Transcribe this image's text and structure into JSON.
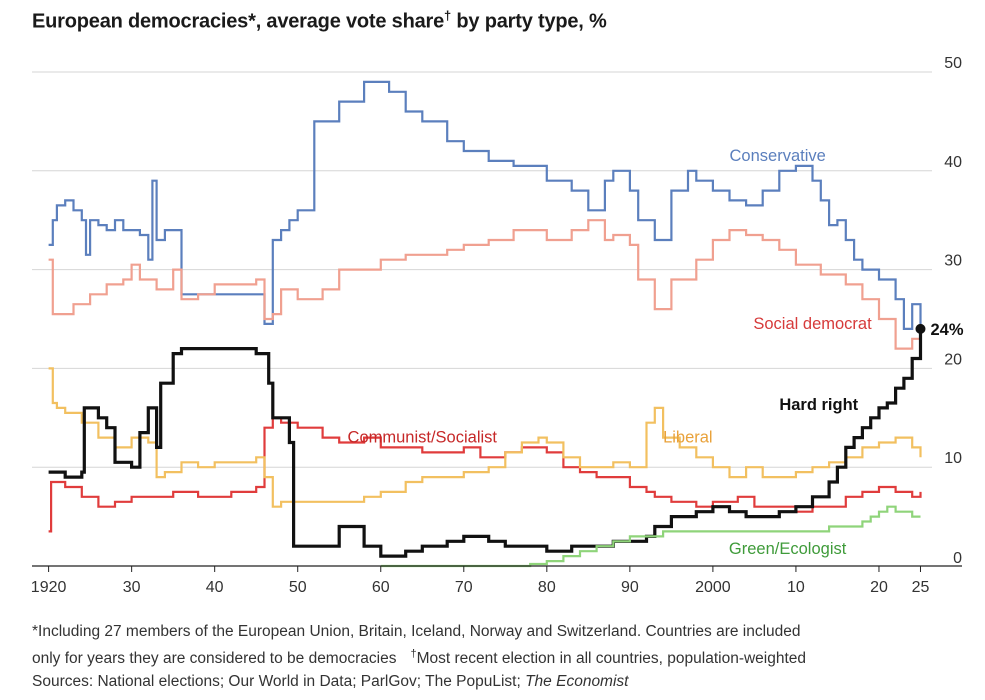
{
  "header": {
    "title_part1": "European democracies",
    "title_star": "*",
    "title_part2": ", average vote share",
    "title_dagger": "†",
    "title_part3": " by party type, %"
  },
  "chart_data": {
    "type": "line",
    "title": "European democracies*, average vote share† by party type, %",
    "xlabel": "",
    "ylabel": "%",
    "xlim": [
      1918,
      2030
    ],
    "ylim": [
      0,
      50
    ],
    "x_ticks": [
      {
        "value": 1920,
        "label": "1920"
      },
      {
        "value": 1930,
        "label": "30"
      },
      {
        "value": 1940,
        "label": "40"
      },
      {
        "value": 1950,
        "label": "50"
      },
      {
        "value": 1960,
        "label": "60"
      },
      {
        "value": 1970,
        "label": "70"
      },
      {
        "value": 1980,
        "label": "80"
      },
      {
        "value": 1990,
        "label": "90"
      },
      {
        "value": 2000,
        "label": "2000"
      },
      {
        "value": 2010,
        "label": "10"
      },
      {
        "value": 2020,
        "label": "20"
      },
      {
        "value": 2025,
        "label": "25"
      }
    ],
    "y_ticks": [
      {
        "value": 0,
        "label": "0"
      },
      {
        "value": 10,
        "label": "10"
      },
      {
        "value": 20,
        "label": "20"
      },
      {
        "value": 30,
        "label": "30"
      },
      {
        "value": 40,
        "label": "40"
      },
      {
        "value": 50,
        "label": "50"
      }
    ],
    "series": [
      {
        "name": "Conservative",
        "label": "Conservative",
        "color": "#5b7fbd",
        "width": 2.2,
        "x": [
          1920,
          1920.5,
          1921,
          1922,
          1923,
          1924,
          1924.5,
          1925,
          1926,
          1927,
          1928,
          1929,
          1931,
          1932,
          1932.5,
          1933,
          1934,
          1936,
          1946,
          1946,
          1947,
          1948,
          1949,
          1950,
          1952,
          1955,
          1958,
          1961,
          1963,
          1965,
          1968,
          1970,
          1973,
          1976,
          1980,
          1983,
          1985,
          1987,
          1988,
          1990,
          1991,
          1993,
          1995,
          1997,
          1998,
          2000,
          2002,
          2004,
          2006,
          2008,
          2010,
          2012,
          2013,
          2014,
          2015,
          2016,
          2017,
          2018,
          2020,
          2022,
          2023,
          2024,
          2025
        ],
        "y": [
          32.5,
          35,
          36.5,
          37,
          36,
          35,
          31.5,
          35,
          34.5,
          34,
          35,
          34,
          33.5,
          31,
          39,
          33,
          34,
          27.5,
          27,
          24.5,
          33,
          34,
          35,
          36,
          45,
          47,
          49,
          48,
          46,
          45,
          43,
          42,
          41,
          40.5,
          39,
          38,
          36,
          39,
          40,
          38,
          35,
          33,
          38,
          40,
          39,
          38,
          37,
          36.5,
          38,
          40,
          40.5,
          39,
          37,
          34.5,
          35,
          33,
          31,
          30,
          29,
          27,
          24,
          26.5,
          24
        ]
      },
      {
        "name": "Social democrat",
        "label": "Social democrat",
        "color": "#f0a090",
        "width": 2.2,
        "x": [
          1920,
          1920.5,
          1921,
          1923,
          1925,
          1927,
          1929,
          1930,
          1931,
          1933,
          1935,
          1936,
          1938,
          1940,
          1945,
          1946,
          1947,
          1948,
          1950,
          1953,
          1955,
          1960,
          1963,
          1965,
          1968,
          1970,
          1973,
          1976,
          1980,
          1983,
          1985,
          1987,
          1988,
          1990,
          1991,
          1993,
          1995,
          1998,
          2000,
          2002,
          2004,
          2006,
          2008,
          2010,
          2013,
          2016,
          2018,
          2020,
          2022,
          2024,
          2025
        ],
        "y": [
          31,
          25.5,
          25.5,
          26.5,
          27.5,
          28.5,
          29,
          30.5,
          29,
          28,
          30,
          27,
          27.5,
          28.5,
          29,
          25,
          25.5,
          28,
          27,
          28,
          30,
          31,
          31.5,
          31.5,
          32,
          32.5,
          33,
          34,
          33,
          34,
          35,
          33,
          33.5,
          32.5,
          29,
          26,
          29,
          31,
          33,
          34,
          33.5,
          33,
          32,
          30.5,
          29.5,
          28.5,
          27,
          25,
          22,
          23,
          23.5
        ]
      },
      {
        "name": "Communist/Socialist",
        "label": "Communist/Socialist",
        "color": "#e03c3c",
        "width": 2.2,
        "x": [
          1920,
          1920.3,
          1922,
          1924,
          1926,
          1928,
          1930,
          1932,
          1935,
          1938,
          1940,
          1942,
          1945,
          1946,
          1947,
          1948,
          1950,
          1953,
          1955,
          1958,
          1960,
          1962,
          1965,
          1968,
          1970,
          1972,
          1975,
          1977,
          1980,
          1982,
          1984,
          1986,
          1988,
          1990,
          1992,
          1993,
          1995,
          1998,
          2000,
          2003,
          2005,
          2008,
          2010,
          2012,
          2014,
          2016,
          2018,
          2020,
          2022,
          2024,
          2025
        ],
        "y": [
          3.5,
          8.5,
          8,
          7,
          6,
          6.5,
          7,
          7,
          7.5,
          7,
          7,
          7.5,
          8,
          14,
          15,
          14.5,
          14,
          13,
          12.5,
          13,
          12,
          12,
          11.5,
          11.5,
          12,
          11,
          11.5,
          12,
          11.5,
          10,
          9.5,
          9,
          9,
          8,
          7.5,
          7,
          6.5,
          6,
          6.5,
          7,
          6,
          6,
          5.5,
          6,
          6,
          7,
          7.5,
          8,
          7.5,
          7,
          7.5
        ]
      },
      {
        "name": "Liberal",
        "label": "Liberal",
        "color": "#f2c060",
        "width": 2.2,
        "x": [
          1920,
          1920.5,
          1921,
          1922,
          1924,
          1926,
          1928,
          1930,
          1932,
          1933,
          1934,
          1936,
          1938,
          1940,
          1943,
          1945,
          1946,
          1947,
          1948,
          1950,
          1952,
          1955,
          1958,
          1960,
          1963,
          1965,
          1968,
          1970,
          1973,
          1975,
          1977,
          1979,
          1980,
          1982,
          1984,
          1986,
          1988,
          1990,
          1992,
          1993,
          1994,
          1996,
          1998,
          2000,
          2002,
          2004,
          2006,
          2008,
          2010,
          2012,
          2014,
          2016,
          2018,
          2020,
          2022,
          2024,
          2025
        ],
        "y": [
          20,
          16.5,
          16,
          15.5,
          14.5,
          13,
          12,
          13,
          12.5,
          9,
          9.5,
          10.5,
          10,
          10.5,
          10.5,
          11,
          9,
          6,
          6.5,
          6.5,
          6.5,
          6.5,
          7,
          7.5,
          8.5,
          9,
          9,
          9.5,
          10,
          11.5,
          12.5,
          13,
          12.5,
          11,
          10,
          10,
          10.5,
          10,
          14.5,
          16,
          13,
          12,
          11,
          10,
          9,
          10,
          9,
          9,
          9.5,
          10,
          10.5,
          11,
          12,
          12.5,
          13,
          12,
          11
        ]
      },
      {
        "name": "Hard right",
        "label": "Hard right",
        "color": "#111111",
        "width": 3.2,
        "x": [
          1920,
          1922,
          1924,
          1924.3,
          1926,
          1927,
          1928,
          1930,
          1931,
          1932,
          1933,
          1933.5,
          1935,
          1936,
          1938,
          1940,
          1945,
          1946,
          1946.5,
          1947,
          1949,
          1949.5,
          1950,
          1955,
          1958,
          1960,
          1963,
          1965,
          1968,
          1970,
          1973,
          1975,
          1978,
          1980,
          1983,
          1986,
          1988,
          1990,
          1992,
          1993,
          1995,
          1998,
          2000,
          2002,
          2004,
          2006,
          2008,
          2010,
          2012,
          2014,
          2015,
          2016,
          2017,
          2018,
          2019,
          2020,
          2021,
          2022,
          2023,
          2024,
          2025
        ],
        "y": [
          9.5,
          9,
          9.5,
          16,
          15,
          14,
          10.5,
          10,
          13.5,
          16,
          12,
          18.5,
          21.5,
          22,
          22,
          22,
          21.5,
          21.5,
          18.5,
          15,
          12.5,
          2,
          2,
          4,
          2,
          1,
          1.5,
          2,
          2.5,
          3,
          2.5,
          2,
          2,
          1.5,
          2,
          2,
          2.5,
          2.5,
          3,
          4,
          5,
          5.5,
          6,
          5.5,
          5,
          5,
          5.5,
          6,
          7,
          8.5,
          10,
          12,
          13,
          14,
          15,
          16,
          16.5,
          18,
          19,
          21,
          24
        ]
      },
      {
        "name": "Green/Ecologist",
        "label": "Green/Ecologist",
        "color": "#8fd47a",
        "width": 2.2,
        "x": [
          1960,
          1965,
          1970,
          1975,
          1978,
          1980,
          1982,
          1984,
          1986,
          1988,
          1990,
          1992,
          1994,
          1996,
          1998,
          2000,
          2002,
          2004,
          2006,
          2008,
          2010,
          2012,
          2014,
          2016,
          2018,
          2019,
          2020,
          2021,
          2022,
          2023,
          2024,
          2025
        ],
        "y": [
          0,
          0,
          0,
          0,
          0.2,
          0.5,
          1,
          1.5,
          2,
          2.5,
          3,
          3,
          3.5,
          3.5,
          3.5,
          3.5,
          3.5,
          3.5,
          3.5,
          3.5,
          3.5,
          3.5,
          4,
          4,
          4.5,
          5,
          5.5,
          6,
          5.5,
          5.5,
          5,
          5
        ]
      }
    ],
    "annotations": [
      {
        "series": "Conservative",
        "text": "Conservative",
        "color": "#5b7fbd",
        "x": 2002,
        "y": 41,
        "anchor": "start"
      },
      {
        "series": "Social democrat",
        "text": "Social democrat",
        "color": "#d63a3a",
        "x": 2012,
        "y": 24,
        "anchor": "middle"
      },
      {
        "series": "Communist/Socialist",
        "text": "Communist/Socialist",
        "color": "#c62828",
        "x": 1965,
        "y": 12.5,
        "anchor": "middle"
      },
      {
        "series": "Liberal",
        "text": "Liberal",
        "color": "#e9a23b",
        "x": 1994,
        "y": 12.5,
        "anchor": "start"
      },
      {
        "series": "Hard right",
        "text": "Hard right",
        "color": "#111111",
        "x": 2008,
        "y": 15.8,
        "anchor": "start"
      },
      {
        "series": "Green/Ecologist",
        "text": "Green/Ecologist",
        "color": "#3f9b3a",
        "x": 2009,
        "y": 1.2,
        "anchor": "middle"
      }
    ],
    "endpoint": {
      "series": "Hard right",
      "x": 2025,
      "y": 24,
      "label": "24%"
    }
  },
  "footer": {
    "note1": "*Including 27 members of the European Union, Britain, Iceland, Norway and Switzerland. Countries are included",
    "note2a": "only for years they are considered to be democracies",
    "note2_dagger": "†",
    "note2b": "Most recent election in all countries, population-weighted",
    "sources_prefix": "Sources: National elections; Our World in Data; ParlGov; The PopuList; ",
    "sources_italic": "The Economist"
  }
}
